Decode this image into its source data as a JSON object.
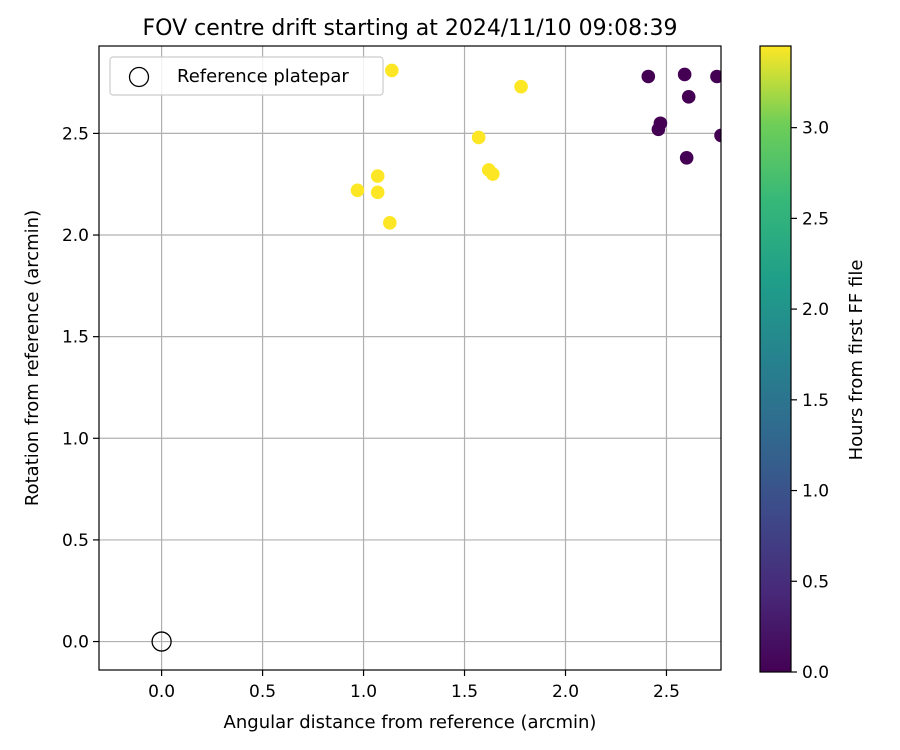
{
  "chart_data": {
    "type": "scatter",
    "title": "FOV centre drift starting at 2024/11/10 09:08:39",
    "xlabel": "Angular distance from reference (arcmin)",
    "ylabel": "Rotation from reference (arcmin)",
    "xlim": [
      -0.31,
      2.77
    ],
    "ylim": [
      -0.14,
      2.93
    ],
    "xticks": [
      "0.0",
      "0.5",
      "1.0",
      "1.5",
      "2.0",
      "2.5"
    ],
    "yticks": [
      "0.0",
      "0.5",
      "1.0",
      "1.5",
      "2.0",
      "2.5"
    ],
    "grid": true,
    "legend": {
      "placement": "top-left",
      "entries": [
        "Reference platepar"
      ]
    },
    "reference_point": {
      "name": "Reference platepar",
      "x": 0.0,
      "y": 0.0
    },
    "colorbar": {
      "label": "Hours from first FF file",
      "range": [
        0.0,
        3.45
      ],
      "ticks": [
        "0.0",
        "0.5",
        "1.0",
        "1.5",
        "2.0",
        "2.5",
        "3.0"
      ],
      "colormap": "viridis"
    },
    "points": [
      {
        "x": 2.41,
        "y": 2.78,
        "hours": 0.0
      },
      {
        "x": 2.59,
        "y": 2.79,
        "hours": 0.0
      },
      {
        "x": 2.75,
        "y": 2.78,
        "hours": 0.0
      },
      {
        "x": 2.61,
        "y": 2.68,
        "hours": 0.0
      },
      {
        "x": 2.47,
        "y": 2.55,
        "hours": 0.0
      },
      {
        "x": 2.46,
        "y": 2.52,
        "hours": 0.0
      },
      {
        "x": 2.77,
        "y": 2.49,
        "hours": 0.0
      },
      {
        "x": 2.6,
        "y": 2.38,
        "hours": 0.0
      },
      {
        "x": 1.14,
        "y": 2.81,
        "hours": 3.45
      },
      {
        "x": 1.78,
        "y": 2.73,
        "hours": 3.45
      },
      {
        "x": 1.57,
        "y": 2.48,
        "hours": 3.45
      },
      {
        "x": 1.62,
        "y": 2.32,
        "hours": 3.45
      },
      {
        "x": 1.64,
        "y": 2.3,
        "hours": 3.45
      },
      {
        "x": 1.07,
        "y": 2.29,
        "hours": 3.45
      },
      {
        "x": 0.97,
        "y": 2.22,
        "hours": 3.45
      },
      {
        "x": 1.07,
        "y": 2.21,
        "hours": 3.45
      },
      {
        "x": 1.13,
        "y": 2.06,
        "hours": 3.45
      }
    ]
  }
}
